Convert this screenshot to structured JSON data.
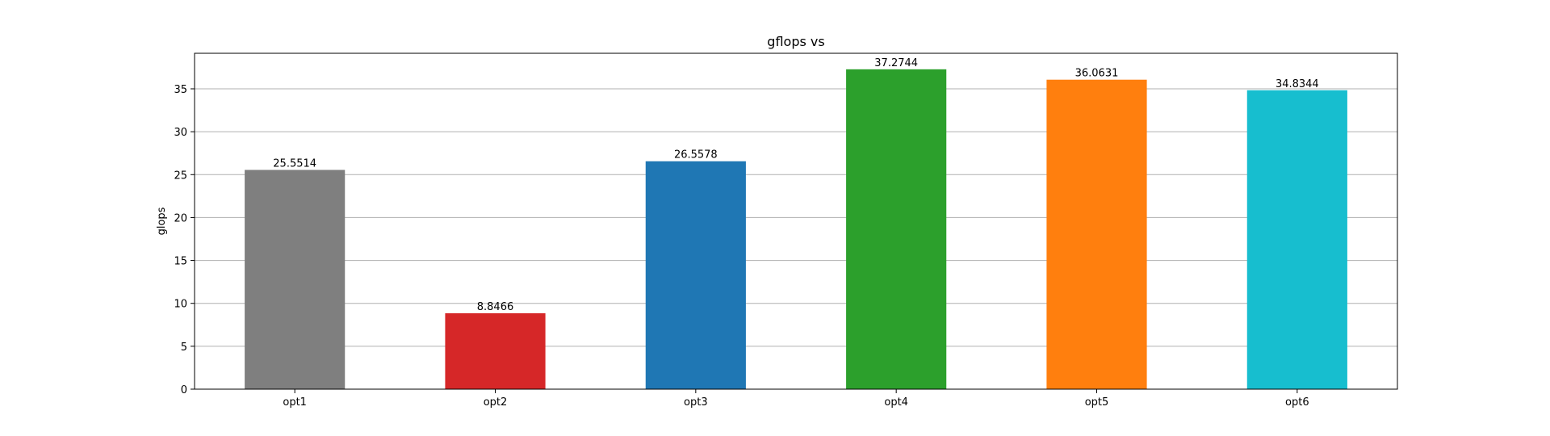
{
  "chart_data": {
    "type": "bar",
    "title": "gflops vs",
    "xlabel": "",
    "ylabel": "glops",
    "categories": [
      "opt1",
      "opt2",
      "opt3",
      "opt4",
      "opt5",
      "opt6"
    ],
    "values": [
      25.5514,
      8.8466,
      26.5578,
      37.2744,
      36.0631,
      34.8344
    ],
    "value_labels": [
      "25.5514",
      "8.8466",
      "26.5578",
      "37.2744",
      "36.0631",
      "34.8344"
    ],
    "colors": [
      "#7f7f7f",
      "#d62728",
      "#1f77b4",
      "#2ca02c",
      "#ff7f0e",
      "#17becf"
    ],
    "ylim": [
      0,
      39.14
    ],
    "yticks": [
      0,
      5,
      10,
      15,
      20,
      25,
      30,
      35
    ],
    "grid": "y",
    "legend": "none"
  }
}
